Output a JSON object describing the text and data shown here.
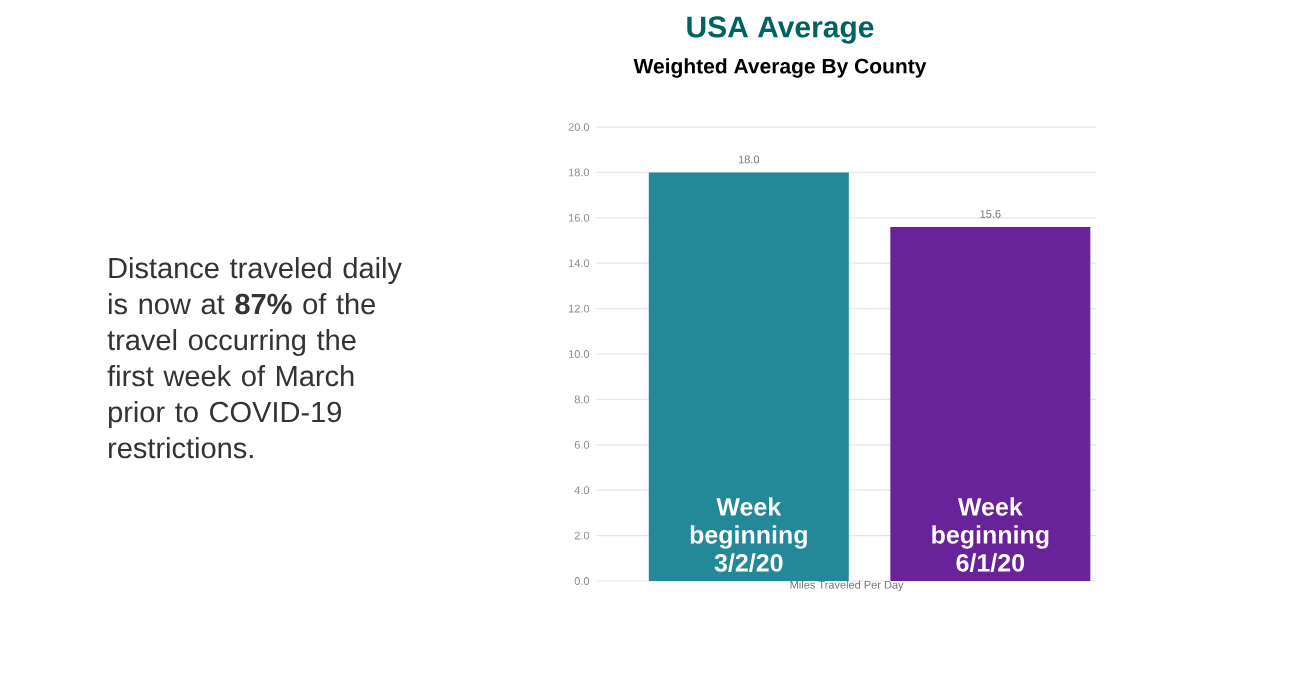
{
  "chart_data": {
    "type": "bar",
    "title": "USA Average",
    "subtitle": "Weighted Average By County",
    "xlabel": "Miles Traveled Per Day",
    "categories": [
      "Week beginning 3/2/20",
      "Week beginning 6/1/20"
    ],
    "values": [
      18.0,
      15.6
    ],
    "colors": [
      "#238898",
      "#68229a"
    ],
    "value_labels": [
      "18.0",
      "15.6"
    ],
    "ylim": [
      0,
      20
    ],
    "yticks": [
      {
        "value": 0,
        "label": "0.0"
      },
      {
        "value": 2,
        "label": "2.0"
      },
      {
        "value": 4,
        "label": "4.0"
      },
      {
        "value": 6,
        "label": "6.0"
      },
      {
        "value": 8,
        "label": "8.0"
      },
      {
        "value": 10,
        "label": "10.0"
      },
      {
        "value": 12,
        "label": "12.0"
      },
      {
        "value": 14,
        "label": "14.0"
      },
      {
        "value": 16,
        "label": "16.0"
      },
      {
        "value": 18,
        "label": "18.0"
      },
      {
        "value": 20,
        "label": "20.0"
      }
    ],
    "grid": "y",
    "annotations": [
      "Distance traveled daily is now at **87%** of the travel occurring the first week of March prior to COVID-19 restrictions."
    ]
  }
}
